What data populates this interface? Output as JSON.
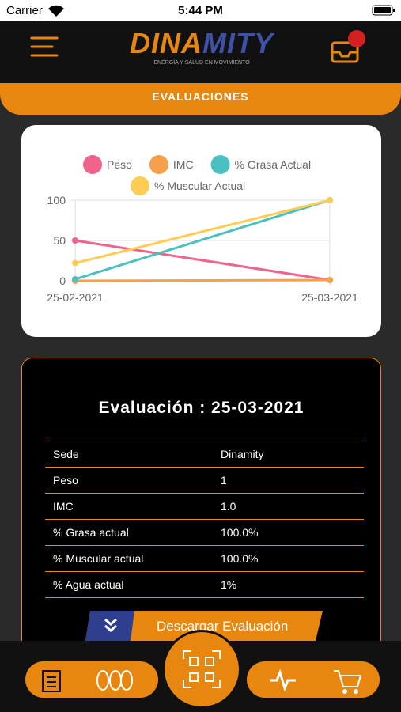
{
  "status": {
    "carrier": "Carrier",
    "time": "5:44 PM"
  },
  "header": {
    "logo": [
      "DINA",
      "MITY"
    ],
    "tagline": "ENERGÍA Y SALUD EN MOVIMIENTO",
    "tab": "EVALUACIONES"
  },
  "chart_data": {
    "type": "line",
    "categories": [
      "25-02-2021",
      "25-03-2021"
    ],
    "series": [
      {
        "name": "Peso",
        "color": "#f0648c",
        "values": [
          50,
          1
        ]
      },
      {
        "name": "IMC",
        "color": "#f5a04a",
        "values": [
          0,
          1
        ]
      },
      {
        "name": "% Grasa Actual",
        "color": "#4bc0c0",
        "values": [
          2,
          100
        ]
      },
      {
        "name": "% Muscular Actual",
        "color": "#ffcd56",
        "values": [
          22,
          100
        ]
      }
    ],
    "ylim": [
      0,
      100
    ],
    "yticks": [
      0,
      50,
      100
    ],
    "grid": true
  },
  "evaluation": {
    "title": "Evaluación : 25-03-2021",
    "rows": [
      [
        "Sede",
        "Dinamity"
      ],
      [
        "Peso",
        "1"
      ],
      [
        "IMC",
        "1.0"
      ],
      [
        "% Grasa actual",
        "100.0%"
      ],
      [
        "% Muscular actual",
        "100.0%"
      ],
      [
        "% Agua actual",
        "1%"
      ]
    ]
  },
  "button": {
    "label": "Descargar Evaluación"
  }
}
